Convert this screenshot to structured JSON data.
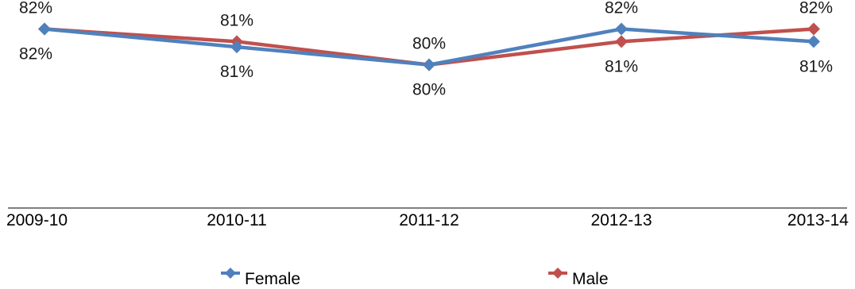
{
  "chart_data": {
    "type": "line",
    "categories": [
      "2009-10",
      "2010-11",
      "2011-12",
      "2012-13",
      "2013-14"
    ],
    "series": [
      {
        "name": "Female",
        "values": [
          82.0,
          81.0,
          80.0,
          82.0,
          81.3
        ],
        "labels": [
          "82%",
          "81%",
          "80%",
          "82%",
          "81%"
        ],
        "label_pos": [
          "below",
          "below",
          "below",
          "above",
          "below"
        ],
        "color": "#4F81BD"
      },
      {
        "name": "Male",
        "values": [
          82.0,
          81.3,
          80.0,
          81.3,
          82.0
        ],
        "labels": [
          "82%",
          "81%",
          "80%",
          "81%",
          "82%"
        ],
        "label_pos": [
          "above",
          "above",
          "above",
          "below",
          "above"
        ],
        "color": "#C0504D"
      }
    ],
    "ylim": [
      72,
      83
    ],
    "grid": false,
    "legend": "bottom"
  }
}
